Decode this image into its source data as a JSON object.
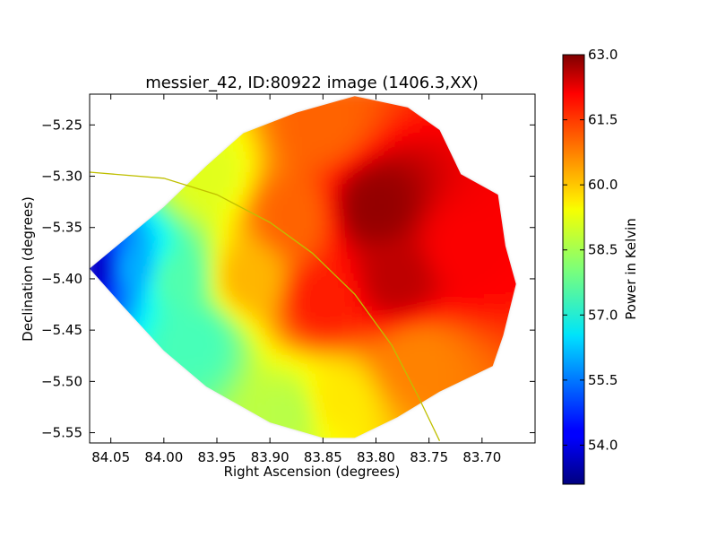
{
  "chart_data": {
    "type": "heatmap",
    "title": "messier_42, ID:80922 image (1406.3,XX)",
    "xlabel": "Right Ascension (degrees)",
    "ylabel": "Declination (degrees)",
    "colorbar_label": "Power in Kelvin",
    "x_axis_inverted": true,
    "xlim": [
      84.07,
      83.65
    ],
    "ylim": [
      -5.56,
      -5.22
    ],
    "x_ticks": [
      84.05,
      84.0,
      83.95,
      83.9,
      83.85,
      83.8,
      83.75,
      83.7
    ],
    "x_tick_labels": [
      "84.05",
      "84.00",
      "83.95",
      "83.90",
      "83.85",
      "83.80",
      "83.75",
      "83.70"
    ],
    "y_ticks": [
      -5.25,
      -5.3,
      -5.35,
      -5.4,
      -5.45,
      -5.5,
      -5.55
    ],
    "y_tick_labels": [
      "−5.25",
      "−5.30",
      "−5.35",
      "−5.40",
      "−5.45",
      "−5.50",
      "−5.55"
    ],
    "colorbar_range": [
      53.1,
      63.0
    ],
    "colorbar_ticks": [
      54.0,
      55.5,
      57.0,
      58.5,
      60.0,
      61.5,
      63.0
    ],
    "colorbar_tick_labels": [
      "54.0",
      "55.5",
      "57.0",
      "58.5",
      "60.0",
      "61.5",
      "63.0"
    ],
    "colormap": "jet",
    "data_region_boundary": [
      [
        84.07,
        -5.39
      ],
      [
        84.0,
        -5.33
      ],
      [
        83.96,
        -5.29
      ],
      [
        83.925,
        -5.258
      ],
      [
        83.875,
        -5.238
      ],
      [
        83.82,
        -5.222
      ],
      [
        83.77,
        -5.233
      ],
      [
        83.74,
        -5.255
      ],
      [
        83.72,
        -5.298
      ],
      [
        83.685,
        -5.318
      ],
      [
        83.678,
        -5.368
      ],
      [
        83.668,
        -5.405
      ],
      [
        83.68,
        -5.455
      ],
      [
        83.69,
        -5.485
      ],
      [
        83.74,
        -5.51
      ],
      [
        83.78,
        -5.535
      ],
      [
        83.82,
        -5.555
      ],
      [
        83.85,
        -5.555
      ],
      [
        83.9,
        -5.54
      ],
      [
        83.96,
        -5.505
      ],
      [
        84.0,
        -5.47
      ],
      [
        84.04,
        -5.425
      ]
    ],
    "field_samples": [
      {
        "ra": 84.06,
        "dec": -5.39,
        "power_k": 53.8
      },
      {
        "ra": 84.03,
        "dec": -5.39,
        "power_k": 56.0
      },
      {
        "ra": 83.99,
        "dec": -5.4,
        "power_k": 57.6
      },
      {
        "ra": 83.97,
        "dec": -5.46,
        "power_k": 57.5
      },
      {
        "ra": 83.96,
        "dec": -5.3,
        "power_k": 59.0
      },
      {
        "ra": 83.92,
        "dec": -5.4,
        "power_k": 60.0
      },
      {
        "ra": 83.88,
        "dec": -5.34,
        "power_k": 60.8
      },
      {
        "ra": 83.85,
        "dec": -5.42,
        "power_k": 61.5
      },
      {
        "ra": 83.85,
        "dec": -5.25,
        "power_k": 60.8
      },
      {
        "ra": 83.8,
        "dec": -5.33,
        "power_k": 62.8
      },
      {
        "ra": 83.78,
        "dec": -5.4,
        "power_k": 62.4
      },
      {
        "ra": 83.72,
        "dec": -5.37,
        "power_k": 61.8
      },
      {
        "ra": 83.76,
        "dec": -5.48,
        "power_k": 60.5
      },
      {
        "ra": 83.84,
        "dec": -5.52,
        "power_k": 59.5
      },
      {
        "ra": 83.88,
        "dec": -5.53,
        "power_k": 58.6
      }
    ],
    "overlay_arc": {
      "color": "#bfbf00",
      "points": [
        [
          84.07,
          -5.296
        ],
        [
          84.0,
          -5.302
        ],
        [
          83.95,
          -5.318
        ],
        [
          83.9,
          -5.345
        ],
        [
          83.86,
          -5.375
        ],
        [
          83.82,
          -5.415
        ],
        [
          83.785,
          -5.465
        ],
        [
          83.76,
          -5.515
        ],
        [
          83.74,
          -5.558
        ]
      ]
    }
  }
}
